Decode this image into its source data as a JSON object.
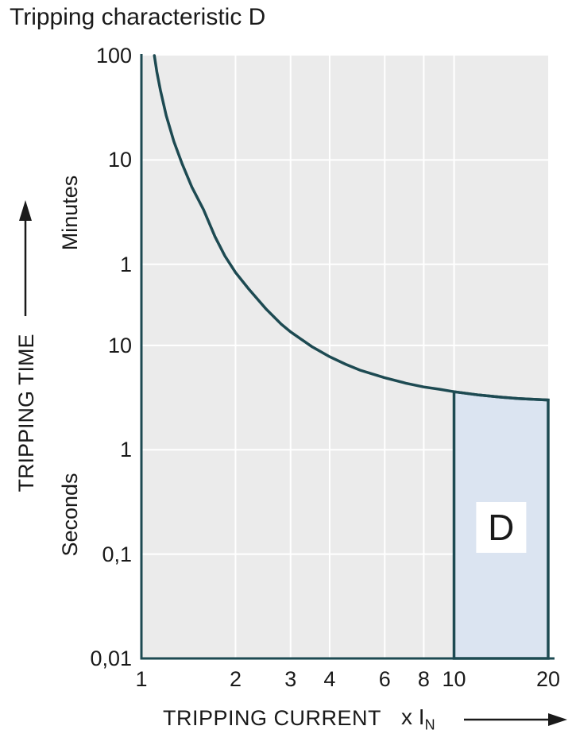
{
  "title": "Tripping characteristic D",
  "colors": {
    "page_bg": "#ffffff",
    "plot_bg": "#ebebeb",
    "grid": "#ffffff",
    "curve": "#1d4a52",
    "axis": "#1d4a52",
    "region_fill": "#dbe4f1",
    "region_border": "#1d4a52",
    "text": "#1a1a1a",
    "arrow": "#1a1a1a",
    "d_label_bg": "#ffffff"
  },
  "chart_data": {
    "type": "line",
    "title": "Tripping characteristic D",
    "xlabel": "TRIPPING CURRENT",
    "x_unit_main": "x I",
    "x_unit_sub": "N",
    "ylabel": "TRIPPING TIME",
    "y_sections": [
      "Minutes",
      "Seconds"
    ],
    "x_scale": "log",
    "x_range": [
      1,
      20
    ],
    "x_ticks": [
      {
        "value": 1,
        "label": "1"
      },
      {
        "value": 2,
        "label": "2"
      },
      {
        "value": 3,
        "label": "3"
      },
      {
        "value": 4,
        "label": "4"
      },
      {
        "value": 6,
        "label": "6"
      },
      {
        "value": 8,
        "label": "8"
      },
      {
        "value": 10,
        "label": "10"
      },
      {
        "value": 20,
        "label": "20"
      }
    ],
    "y_scale": "log",
    "y_axis_note": "top half labelled in minutes (100, 10, 1), bottom half in seconds (10, 1, 0,1, 0,01)",
    "y_range_seconds": [
      0.01,
      6000
    ],
    "y_ticks": [
      {
        "seconds": 6000,
        "label": "100"
      },
      {
        "seconds": 600,
        "label": "10"
      },
      {
        "seconds": 60,
        "label": "1"
      },
      {
        "seconds": 10,
        "label": "10"
      },
      {
        "seconds": 1,
        "label": "1"
      },
      {
        "seconds": 0.1,
        "label": "0,1"
      },
      {
        "seconds": 0.01,
        "label": "0,01"
      }
    ],
    "grid": true,
    "legend": "none",
    "series": [
      {
        "name": "tripping-time-limit-curve",
        "points": [
          [
            1.1,
            6000
          ],
          [
            1.12,
            4200
          ],
          [
            1.15,
            2800
          ],
          [
            1.2,
            1600
          ],
          [
            1.27,
            900
          ],
          [
            1.35,
            550
          ],
          [
            1.45,
            330
          ],
          [
            1.58,
            200
          ],
          [
            1.72,
            110
          ],
          [
            1.85,
            72
          ],
          [
            2.0,
            50
          ],
          [
            2.2,
            35
          ],
          [
            2.5,
            22.5
          ],
          [
            2.8,
            16
          ],
          [
            3.0,
            13.5
          ],
          [
            3.5,
            9.8
          ],
          [
            4.0,
            7.8
          ],
          [
            4.5,
            6.6
          ],
          [
            5.0,
            5.8
          ],
          [
            6.0,
            4.9
          ],
          [
            7.0,
            4.35
          ],
          [
            8.0,
            4.0
          ],
          [
            9.0,
            3.8
          ],
          [
            10.0,
            3.6
          ],
          [
            12.0,
            3.35
          ],
          [
            14.0,
            3.2
          ],
          [
            16.0,
            3.1
          ],
          [
            18.0,
            3.05
          ],
          [
            20.0,
            3.0
          ]
        ]
      }
    ],
    "region": {
      "label": "D",
      "x_range": [
        10,
        20
      ],
      "y_bottom_seconds": 0.01,
      "top_bound": "curve"
    }
  }
}
